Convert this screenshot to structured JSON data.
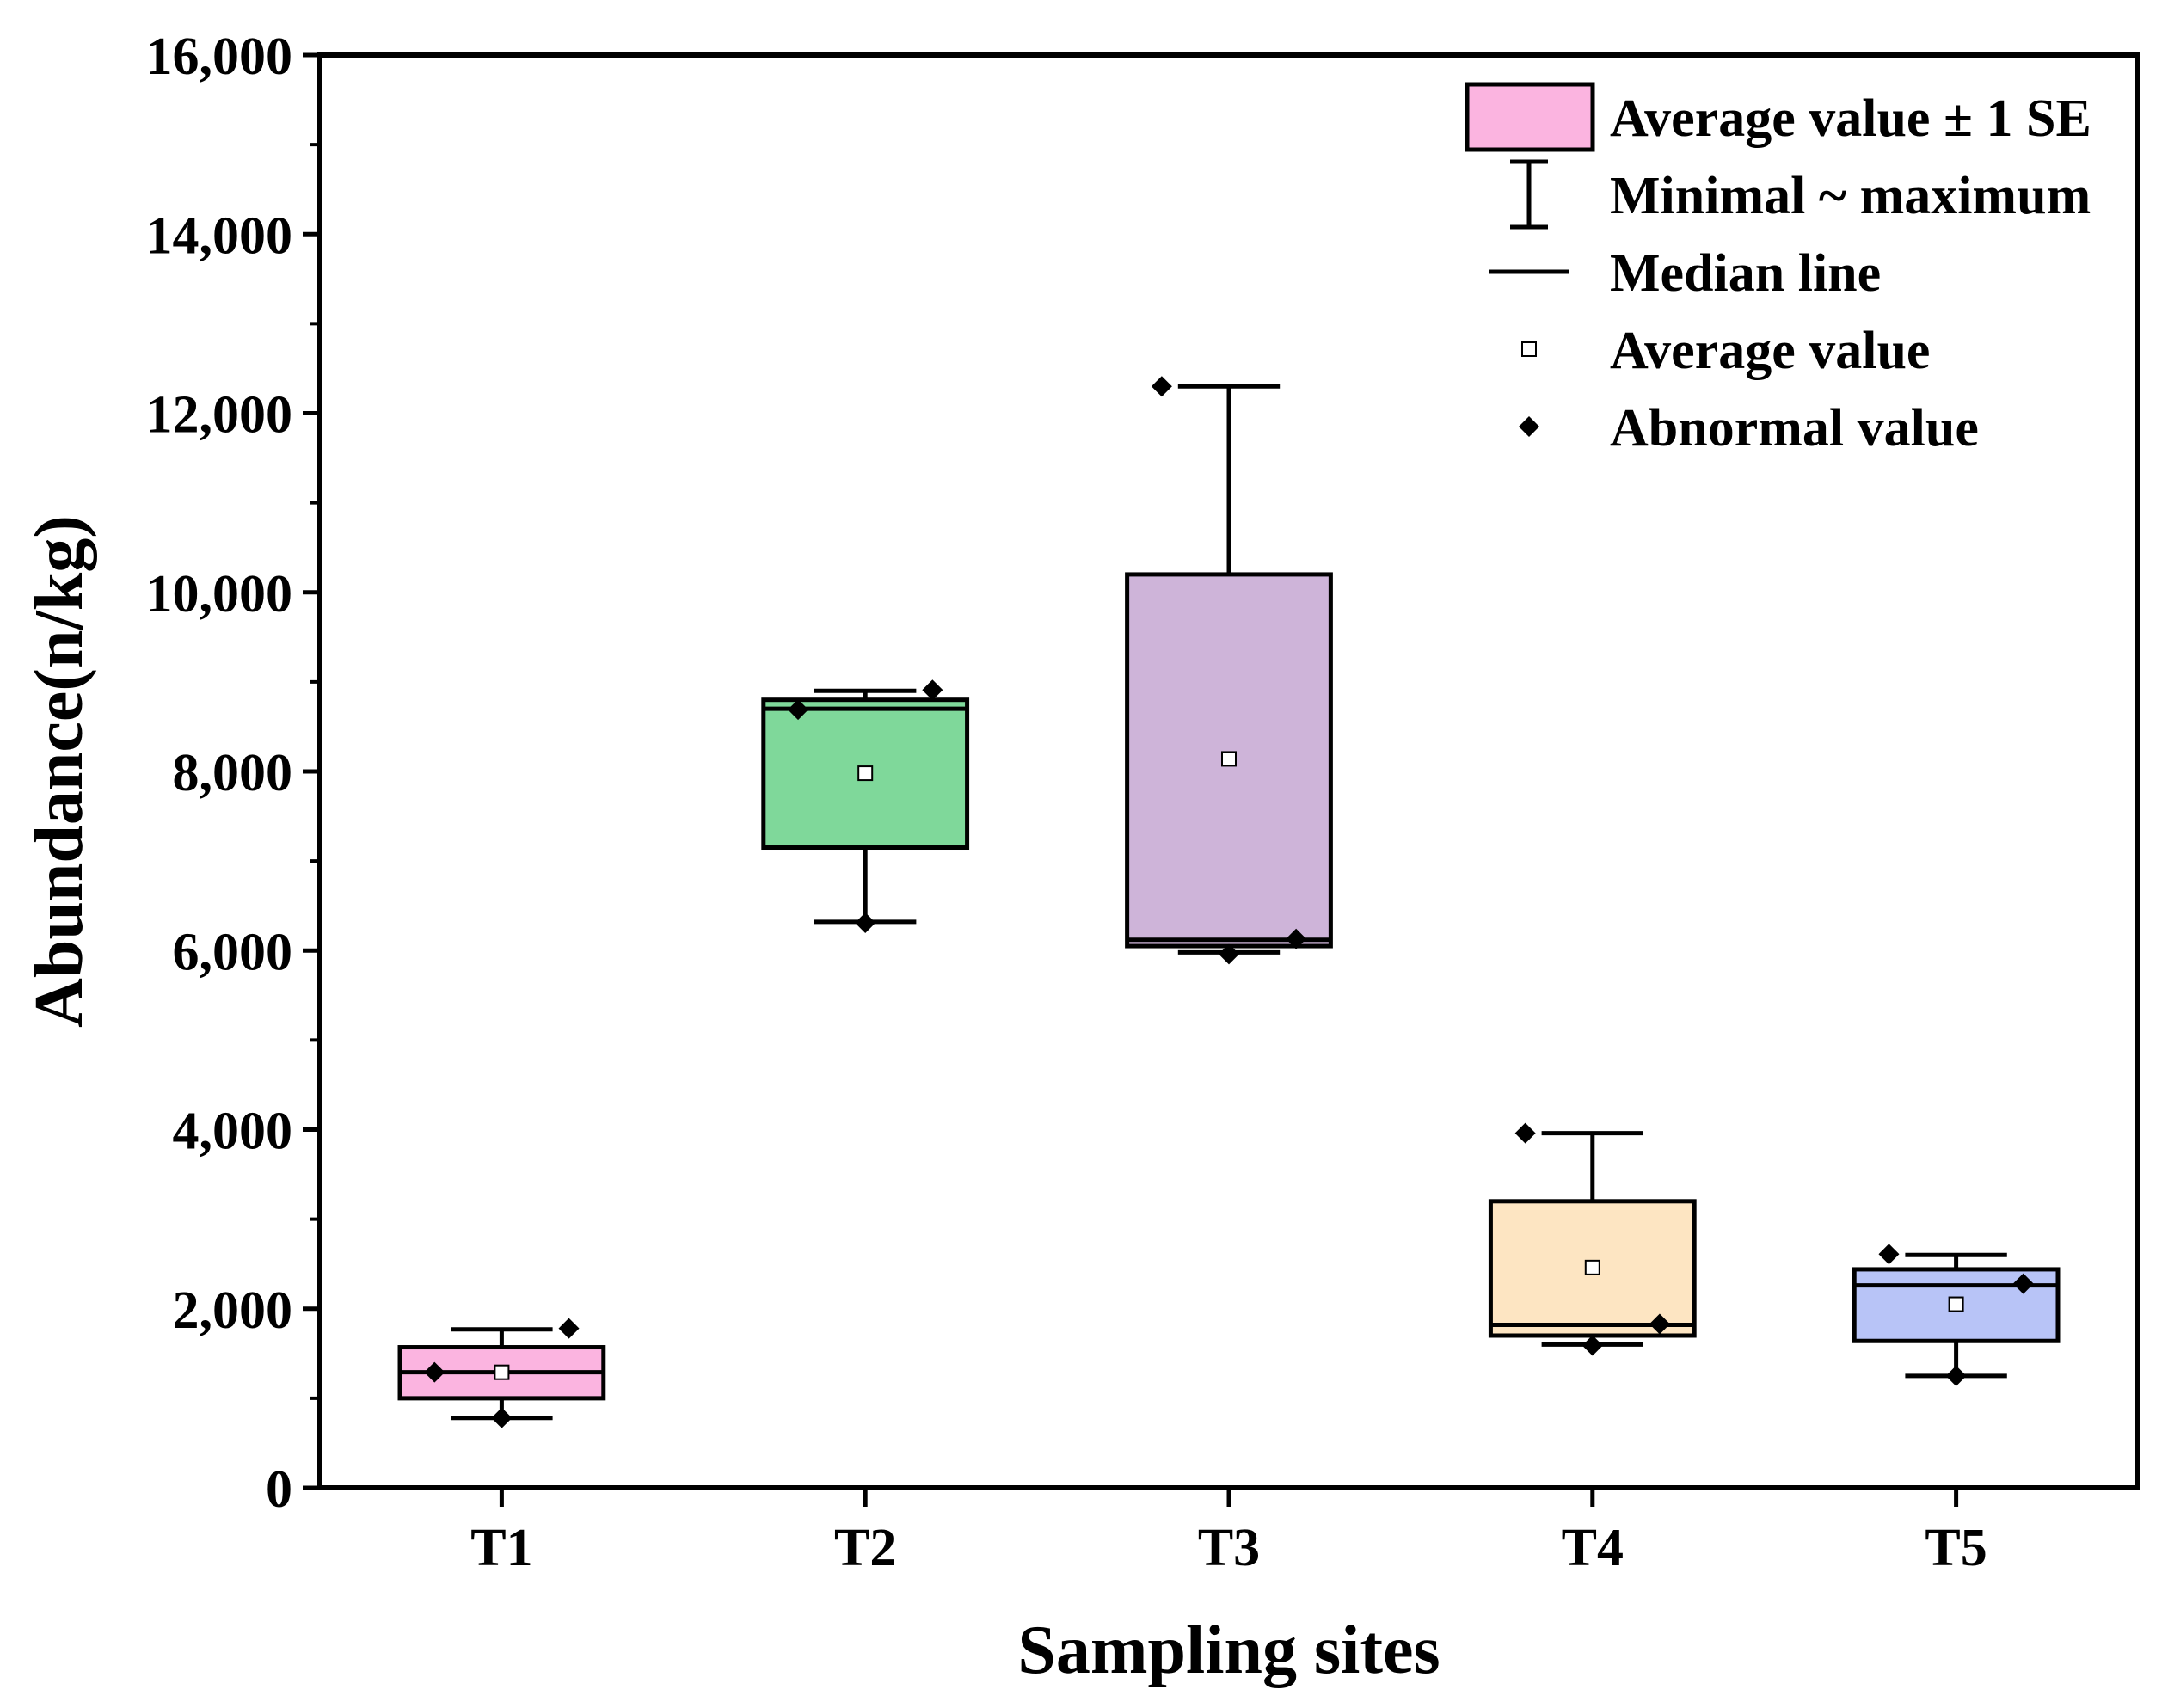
{
  "chart_data": {
    "type": "box",
    "xlabel": "Sampling sites",
    "ylabel": "Abundance(n/kg)",
    "ylim": [
      0,
      16000
    ],
    "yticks": [
      0,
      2000,
      4000,
      6000,
      8000,
      10000,
      12000,
      14000,
      16000
    ],
    "ytick_labels": [
      "0",
      "2,000",
      "4,000",
      "6,000",
      "8,000",
      "10,000",
      "12,000",
      "14,000",
      "16,000"
    ],
    "categories": [
      "T1",
      "T2",
      "T3",
      "T4",
      "T5"
    ],
    "boxes": [
      {
        "site": "T1",
        "box_low": 1000,
        "box_high": 1570,
        "median": 1290,
        "mean": 1290,
        "whisker_min": 780,
        "whisker_max": 1770,
        "color": "#fbb4e0",
        "points": [
          1290,
          1780,
          780
        ]
      },
      {
        "site": "T2",
        "box_low": 7150,
        "box_high": 8800,
        "median": 8700,
        "mean": 7980,
        "whisker_min": 6320,
        "whisker_max": 8900,
        "color": "#7fd89a",
        "points": [
          8690,
          8910,
          6310
        ]
      },
      {
        "site": "T3",
        "box_low": 6050,
        "box_high": 10200,
        "median": 6120,
        "mean": 8140,
        "whisker_min": 5980,
        "whisker_max": 12300,
        "color": "#ceb4d9",
        "points": [
          12300,
          6130,
          5960
        ]
      },
      {
        "site": "T4",
        "box_low": 1700,
        "box_high": 3200,
        "median": 1820,
        "mean": 2460,
        "whisker_min": 1600,
        "whisker_max": 3960,
        "color": "#fde5c2",
        "points": [
          3960,
          1830,
          1590
        ]
      },
      {
        "site": "T5",
        "box_low": 1640,
        "box_high": 2440,
        "median": 2260,
        "mean": 2050,
        "whisker_min": 1250,
        "whisker_max": 2600,
        "color": "#b8c4f7",
        "points": [
          2610,
          2280,
          1250
        ]
      }
    ],
    "legend": {
      "position": "top-right",
      "items": [
        {
          "label": "Average value ± 1 SE",
          "symbol": "box",
          "color": "#fbb4e0"
        },
        {
          "label": "Minimal ~ maximum",
          "symbol": "whisker"
        },
        {
          "label": "Median line",
          "symbol": "line"
        },
        {
          "label": "Average value",
          "symbol": "square"
        },
        {
          "label": "Abnormal value",
          "symbol": "diamond"
        }
      ]
    }
  }
}
